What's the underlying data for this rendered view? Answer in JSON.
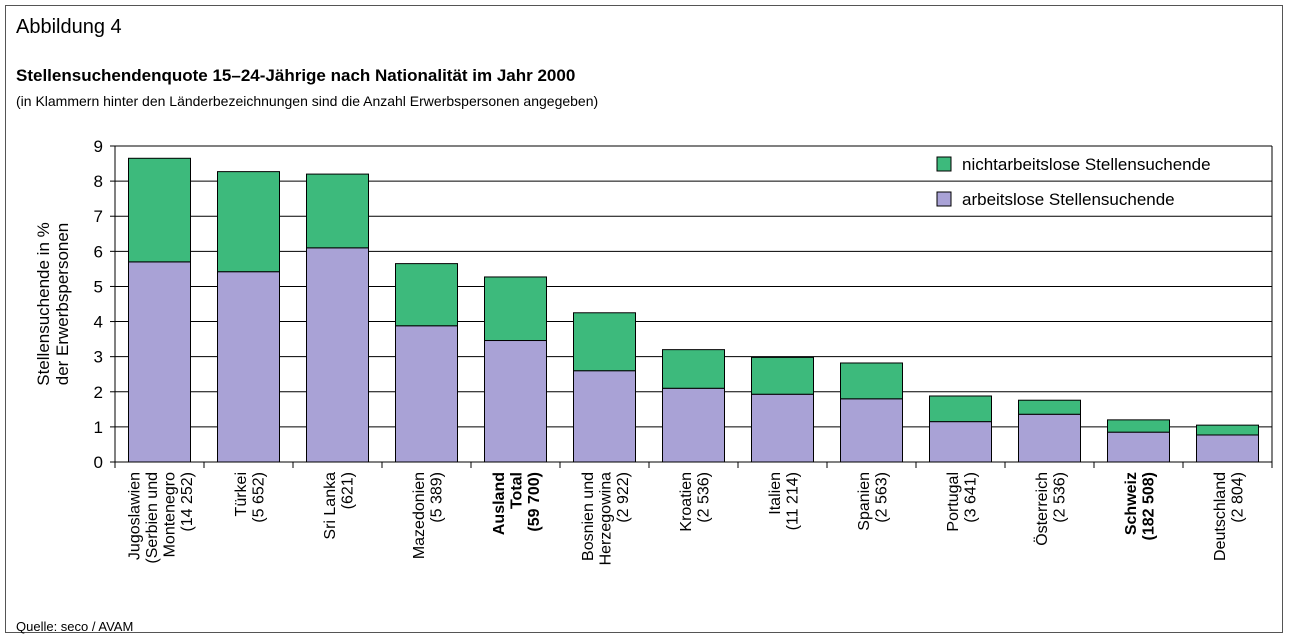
{
  "figure_label": "Abbildung 4",
  "source": "Quelle: seco / AVAM",
  "chart_data": {
    "type": "stacked_bar",
    "title": "Stellensuchendenquote 15–24-Jährige nach Nationalität im Jahr 2000",
    "subtitle": "(in Klammern hinter den Länderbezeichnungen sind die Anzahl Erwerbspersonen angegeben)",
    "y_label": [
      "Stellensuchende in %",
      "der Erwerbspersonen"
    ],
    "categories": [
      [
        "Jugoslawien",
        "(Serbien und",
        "Montenegro",
        "(14 252)"
      ],
      [
        "Türkei",
        "(5 652)"
      ],
      [
        "Sri Lanka",
        "(621)"
      ],
      [
        "Mazedonien",
        "(5 389)"
      ],
      [
        "Ausland",
        "Total",
        "(59 700)"
      ],
      [
        "Bosnien und",
        "Herzegowina",
        "(2 922)"
      ],
      [
        "Kroatien",
        "(2 536)"
      ],
      [
        "Italien",
        "(11 214)"
      ],
      [
        "Spanien",
        "(2 563)"
      ],
      [
        "Portugal",
        "(3 641)"
      ],
      [
        "Österreich",
        "(2 536)"
      ],
      [
        "Schweiz",
        "(182 508)"
      ],
      [
        "Deutschland",
        "(2 804)"
      ]
    ],
    "bold_categories": [
      4,
      11
    ],
    "series": [
      {
        "name": "arbeitslose Stellensuchende",
        "color": "#a9a2d6",
        "values": [
          5.7,
          5.42,
          6.1,
          3.88,
          3.46,
          2.6,
          2.1,
          1.93,
          1.8,
          1.15,
          1.36,
          0.85,
          0.77
        ]
      },
      {
        "name": "nichtarbeitslose Stellensuchende",
        "color": "#3dba7c",
        "values": [
          2.95,
          2.85,
          2.1,
          1.77,
          1.81,
          1.65,
          1.1,
          1.05,
          1.02,
          0.73,
          0.4,
          0.35,
          0.28
        ]
      }
    ],
    "ylim": [
      0,
      9
    ],
    "yticks": [
      0,
      1,
      2,
      3,
      4,
      5,
      6,
      7,
      8,
      9
    ],
    "grid": true,
    "legend": "upper right"
  }
}
